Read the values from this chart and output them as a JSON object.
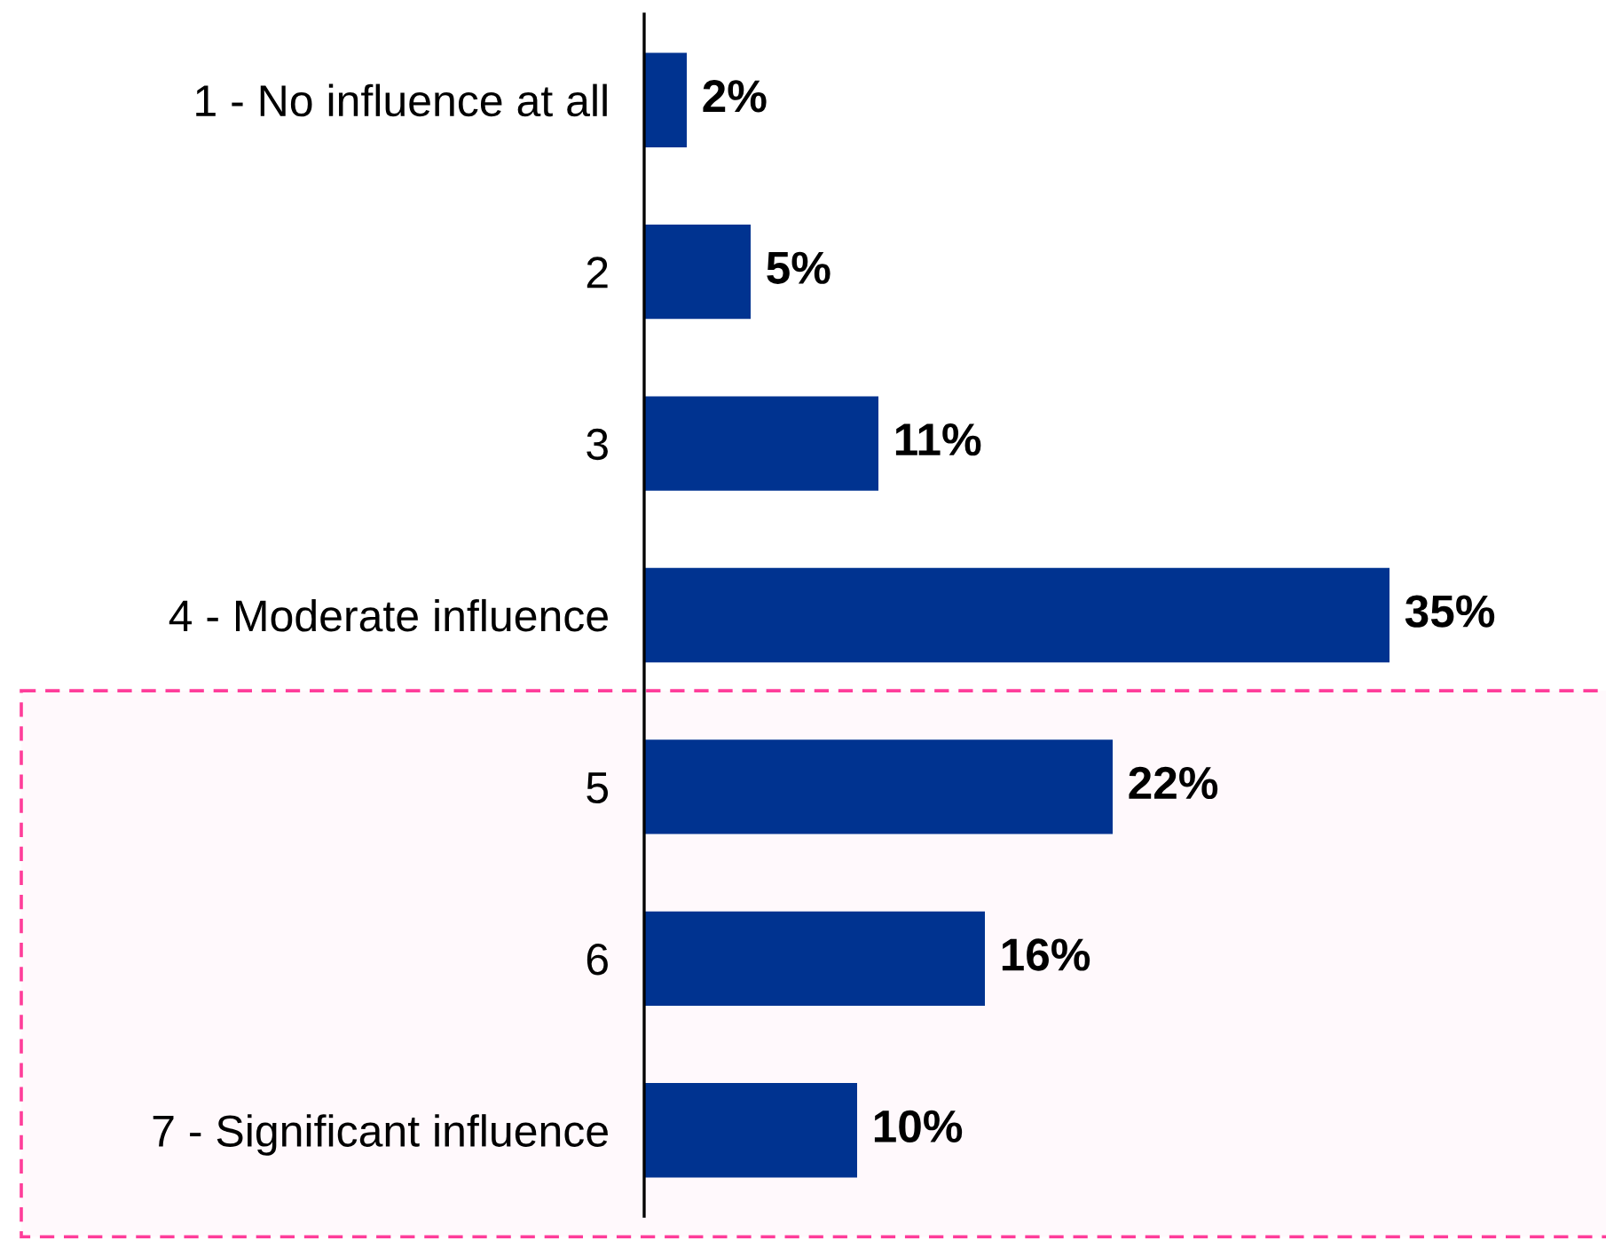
{
  "chart_data": {
    "type": "bar",
    "orientation": "horizontal",
    "categories": [
      "1 - No influence at all",
      "2",
      "3",
      "4 - Moderate influence",
      "5",
      "6",
      "7 - Significant influence"
    ],
    "values": [
      2,
      5,
      11,
      35,
      22,
      16,
      10
    ],
    "color": "#003390",
    "value_labels": [
      "2%",
      "5%",
      "11%",
      "35%",
      "22%",
      "16%",
      "10%"
    ],
    "tick_labels": "y",
    "bands": [
      {
        "axis": "y",
        "from": "5",
        "to": "7 - Significant influence",
        "color": "#ff3d9a"
      }
    ]
  }
}
